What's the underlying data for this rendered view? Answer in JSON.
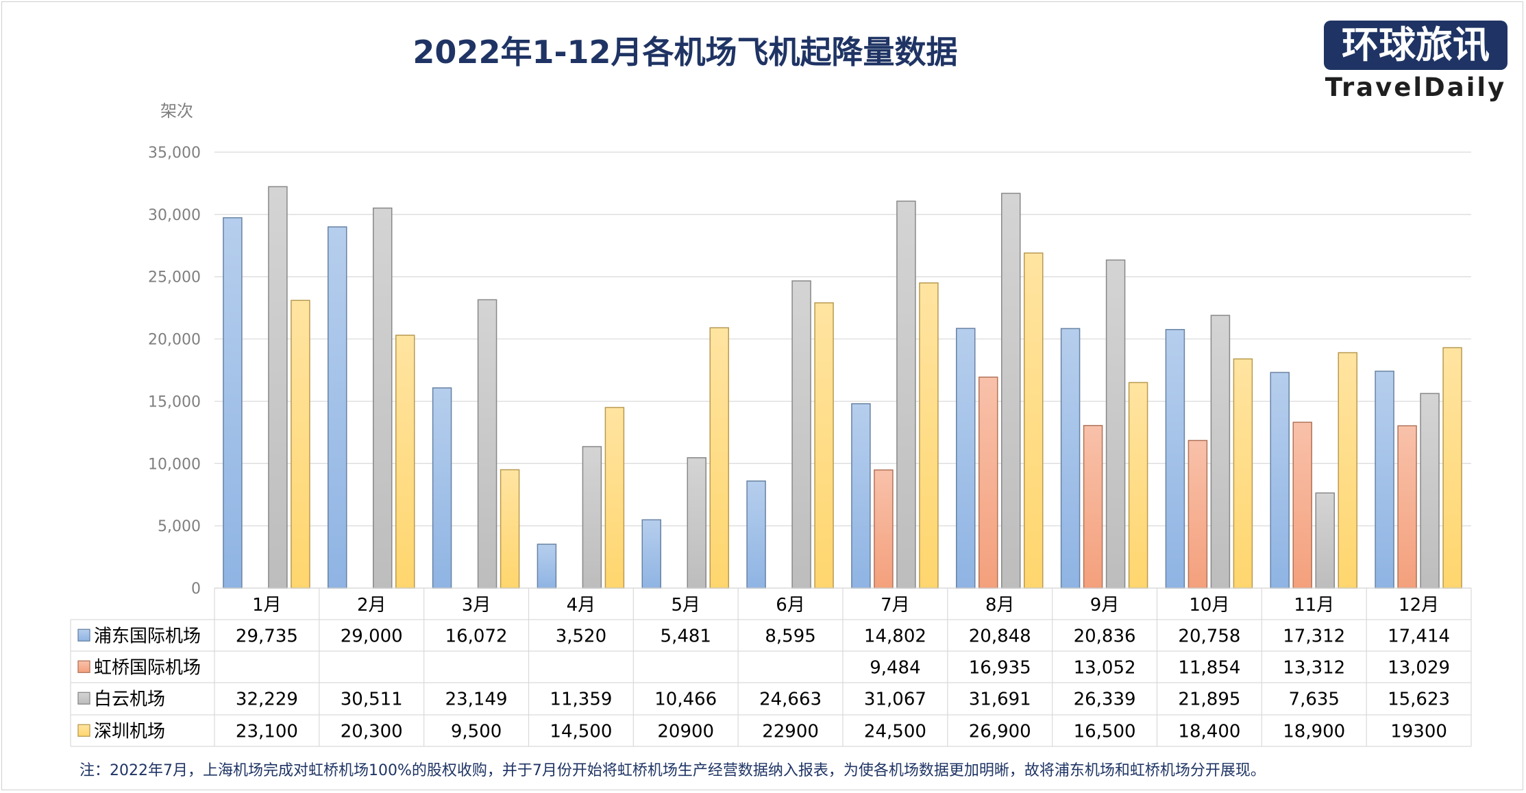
{
  "logo": {
    "cn": "环球旅讯",
    "en": "TravelDaily"
  },
  "footnote": "注：2022年7月，上海机场完成对虹桥机场100%的股权收购，并于7月份开始将虹桥机场生产经营数据纳入报表，为使各机场数据更加明晰，故将浦东机场和虹桥机场分开展现。",
  "colors": {
    "pudong": "#8fb4e3",
    "hongqiao": "#f4a07c",
    "baiyun": "#bdbdbd",
    "shenzhen": "#ffd66e",
    "title": "#1f3464",
    "grid": "#d9d9d9",
    "axis_text": "#7f7f7f"
  },
  "chart_data": {
    "type": "bar",
    "title": "2022年1-12月各机场飞机起降量数据",
    "ylabel": "架次",
    "xlabel": "",
    "ylim": [
      0,
      35000
    ],
    "yticks": [
      "0",
      "5,000",
      "10,000",
      "15,000",
      "20,000",
      "25,000",
      "30,000",
      "35,000"
    ],
    "grid": true,
    "legend": "table-left",
    "categories": [
      "1月",
      "2月",
      "3月",
      "4月",
      "5月",
      "6月",
      "7月",
      "8月",
      "9月",
      "10月",
      "11月",
      "12月"
    ],
    "series": [
      {
        "name": "浦东国际机场",
        "color": "#8fb4e3",
        "values": [
          29735,
          29000,
          16072,
          3520,
          5481,
          8595,
          14802,
          20848,
          20836,
          20758,
          17312,
          17414
        ],
        "labels": [
          "29,735",
          "29,000",
          "16,072",
          "3,520",
          "5,481",
          "8,595",
          "14,802",
          "20,848",
          "20,836",
          "20,758",
          "17,312",
          "17,414"
        ]
      },
      {
        "name": "虹桥国际机场",
        "color": "#f4a07c",
        "values": [
          null,
          null,
          null,
          null,
          null,
          null,
          9484,
          16935,
          13052,
          11854,
          13312,
          13029
        ],
        "labels": [
          "",
          "",
          "",
          "",
          "",
          "",
          "9,484",
          "16,935",
          "13,052",
          "11,854",
          "13,312",
          "13,029"
        ]
      },
      {
        "name": "白云机场",
        "color": "#bdbdbd",
        "values": [
          32229,
          30511,
          23149,
          11359,
          10466,
          24663,
          31067,
          31691,
          26339,
          21895,
          7635,
          15623
        ],
        "labels": [
          "32,229",
          "30,511",
          "23,149",
          "11,359",
          "10,466",
          "24,663",
          "31,067",
          "31,691",
          "26,339",
          "21,895",
          "7,635",
          "15,623"
        ]
      },
      {
        "name": "深圳机场",
        "color": "#ffd66e",
        "values": [
          23100,
          20300,
          9500,
          14500,
          20900,
          22900,
          24500,
          26900,
          16500,
          18400,
          18900,
          19300
        ],
        "labels": [
          "23,100",
          "20,300",
          "9,500",
          "14,500",
          "20900",
          "22900",
          "24,500",
          "26,900",
          "16,500",
          "18,400",
          "18,900",
          "19300"
        ]
      }
    ]
  }
}
